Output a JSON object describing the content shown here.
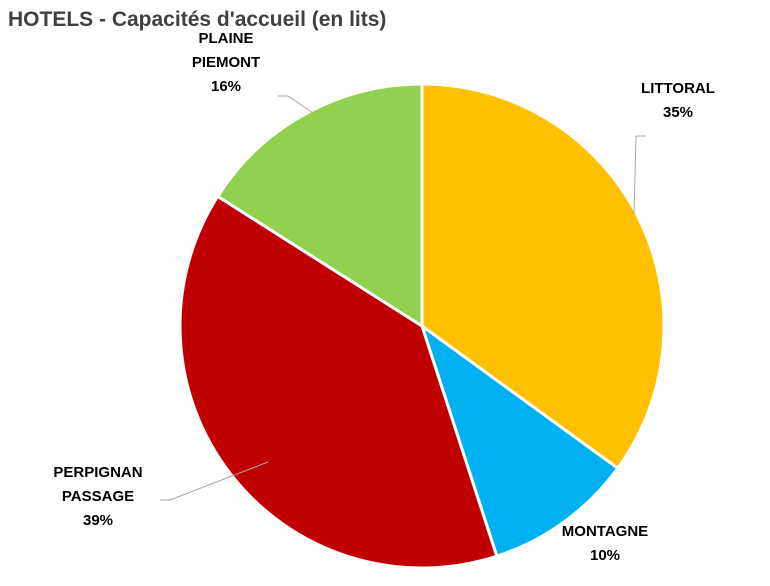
{
  "chart_data": {
    "type": "pie",
    "title": "HOTELS - Capacités d'accueil (en lits)",
    "slices": [
      {
        "label_lines": [
          "LITTORAL"
        ],
        "value": 35,
        "percent_label": "35%",
        "color": "#ffc000"
      },
      {
        "label_lines": [
          "MONTAGNE"
        ],
        "value": 10,
        "percent_label": "10%",
        "color": "#00b0f0"
      },
      {
        "label_lines": [
          "PERPIGNAN",
          "PASSAGE"
        ],
        "value": 39,
        "percent_label": "39%",
        "color": "#c00000"
      },
      {
        "label_lines": [
          "PLAINE",
          "PIEMONT"
        ],
        "value": 16,
        "percent_label": "16%",
        "color": "#92d050"
      }
    ],
    "start": "12 o'clock",
    "direction": "clockwise",
    "legend": "none"
  }
}
